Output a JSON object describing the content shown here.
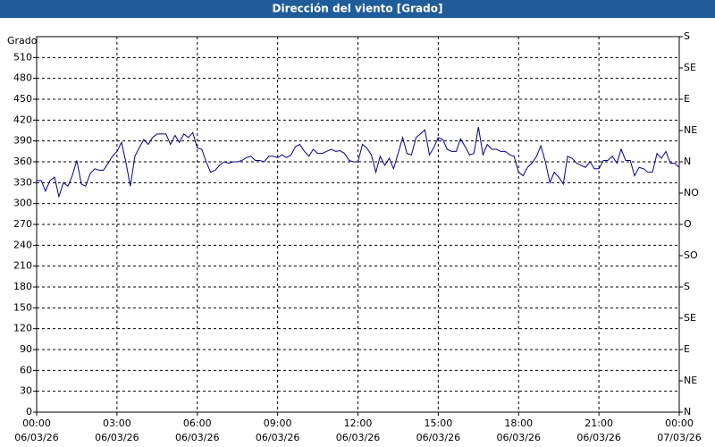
{
  "chart_data": {
    "type": "line",
    "title": "Dirección del viento [Grado]",
    "ylabel": "Grado",
    "x": [
      0,
      0.17,
      0.33,
      0.5,
      0.67,
      0.83,
      1,
      1.17,
      1.33,
      1.5,
      1.67,
      1.83,
      2,
      2.17,
      2.33,
      2.5,
      2.67,
      2.83,
      3,
      3.17,
      3.33,
      3.5,
      3.67,
      3.83,
      4,
      4.17,
      4.33,
      4.5,
      4.67,
      4.83,
      5,
      5.17,
      5.33,
      5.5,
      5.67,
      5.83,
      6,
      6.17,
      6.33,
      6.5,
      6.67,
      6.83,
      7,
      7.17,
      7.33,
      7.5,
      7.67,
      7.83,
      8,
      8.17,
      8.33,
      8.5,
      8.67,
      8.83,
      9,
      9.17,
      9.33,
      9.5,
      9.67,
      9.83,
      10,
      10.17,
      10.33,
      10.5,
      10.67,
      10.83,
      11,
      11.17,
      11.33,
      11.5,
      11.67,
      11.83,
      12,
      12.17,
      12.33,
      12.5,
      12.67,
      12.83,
      13,
      13.17,
      13.33,
      13.5,
      13.67,
      13.83,
      14,
      14.17,
      14.33,
      14.5,
      14.67,
      14.83,
      15,
      15.17,
      15.33,
      15.5,
      15.67,
      15.83,
      16,
      16.17,
      16.33,
      16.5,
      16.67,
      16.83,
      17,
      17.17,
      17.33,
      17.5,
      17.67,
      17.83,
      18,
      18.17,
      18.33,
      18.5,
      18.67,
      18.83,
      19,
      19.17,
      19.33,
      19.5,
      19.67,
      19.83,
      20,
      20.17,
      20.33,
      20.5,
      20.67,
      20.83,
      21,
      21.17,
      21.33,
      21.5,
      21.67,
      21.83,
      22,
      22.17,
      22.33,
      22.5,
      22.67,
      22.83,
      23,
      23.17,
      23.33,
      23.5,
      23.67,
      23.83,
      24
    ],
    "series": [
      {
        "color": "#00008b",
        "values": [
          333,
          333,
          318,
          333,
          338,
          310,
          330,
          325,
          340,
          362,
          328,
          325,
          343,
          350,
          348,
          348,
          358,
          368,
          375,
          388,
          360,
          325,
          368,
          380,
          392,
          385,
          395,
          400,
          400,
          400,
          385,
          398,
          388,
          400,
          395,
          402,
          380,
          378,
          360,
          345,
          348,
          355,
          360,
          358,
          360,
          360,
          362,
          366,
          368,
          362,
          362,
          360,
          368,
          368,
          366,
          370,
          366,
          370,
          382,
          385,
          375,
          368,
          378,
          372,
          372,
          375,
          378,
          375,
          376,
          372,
          362,
          360,
          360,
          385,
          380,
          370,
          345,
          368,
          355,
          365,
          350,
          372,
          395,
          372,
          370,
          395,
          400,
          406,
          370,
          380,
          395,
          392,
          378,
          375,
          375,
          393,
          382,
          370,
          372,
          410,
          370,
          385,
          378,
          378,
          375,
          375,
          370,
          368,
          345,
          340,
          352,
          358,
          368,
          383,
          360,
          330,
          345,
          338,
          328,
          368,
          365,
          358,
          355,
          352,
          360,
          350,
          350,
          362,
          362,
          368,
          358,
          378,
          362,
          362,
          340,
          352,
          350,
          345,
          345,
          372,
          365,
          375,
          358,
          358,
          352
        ]
      }
    ],
    "xlim": [
      0,
      24
    ],
    "xticks": [
      {
        "value": 0,
        "label": "00:00"
      },
      {
        "value": 3,
        "label": "03:00"
      },
      {
        "value": 6,
        "label": "06:00"
      },
      {
        "value": 9,
        "label": "09:00"
      },
      {
        "value": 12,
        "label": "12:00"
      },
      {
        "value": 15,
        "label": "15:00"
      },
      {
        "value": 18,
        "label": "18:00"
      },
      {
        "value": 21,
        "label": "21:00"
      },
      {
        "value": 24,
        "label": "00:00"
      }
    ],
    "xtick_dates": [
      "06/03/26",
      "06/03/26",
      "06/03/26",
      "06/03/26",
      "06/03/26",
      "06/03/26",
      "06/03/26",
      "06/03/26",
      "07/03/26"
    ],
    "ylim": [
      0,
      540
    ],
    "yticks": [
      0,
      30,
      60,
      90,
      120,
      150,
      180,
      210,
      240,
      270,
      300,
      330,
      360,
      390,
      420,
      450,
      480,
      510
    ],
    "y2lim": [
      0,
      540
    ],
    "y2ticks": [
      {
        "value": 0,
        "label": "N"
      },
      {
        "value": 45,
        "label": "NE"
      },
      {
        "value": 90,
        "label": "E"
      },
      {
        "value": 135,
        "label": "SE"
      },
      {
        "value": 180,
        "label": "S"
      },
      {
        "value": 225,
        "label": "SO"
      },
      {
        "value": 270,
        "label": "O"
      },
      {
        "value": 315,
        "label": "NO"
      },
      {
        "value": 360,
        "label": "N"
      },
      {
        "value": 405,
        "label": "NE"
      },
      {
        "value": 450,
        "label": "E"
      },
      {
        "value": 495,
        "label": "SE"
      },
      {
        "value": 540,
        "label": "S"
      }
    ],
    "grid": true
  }
}
